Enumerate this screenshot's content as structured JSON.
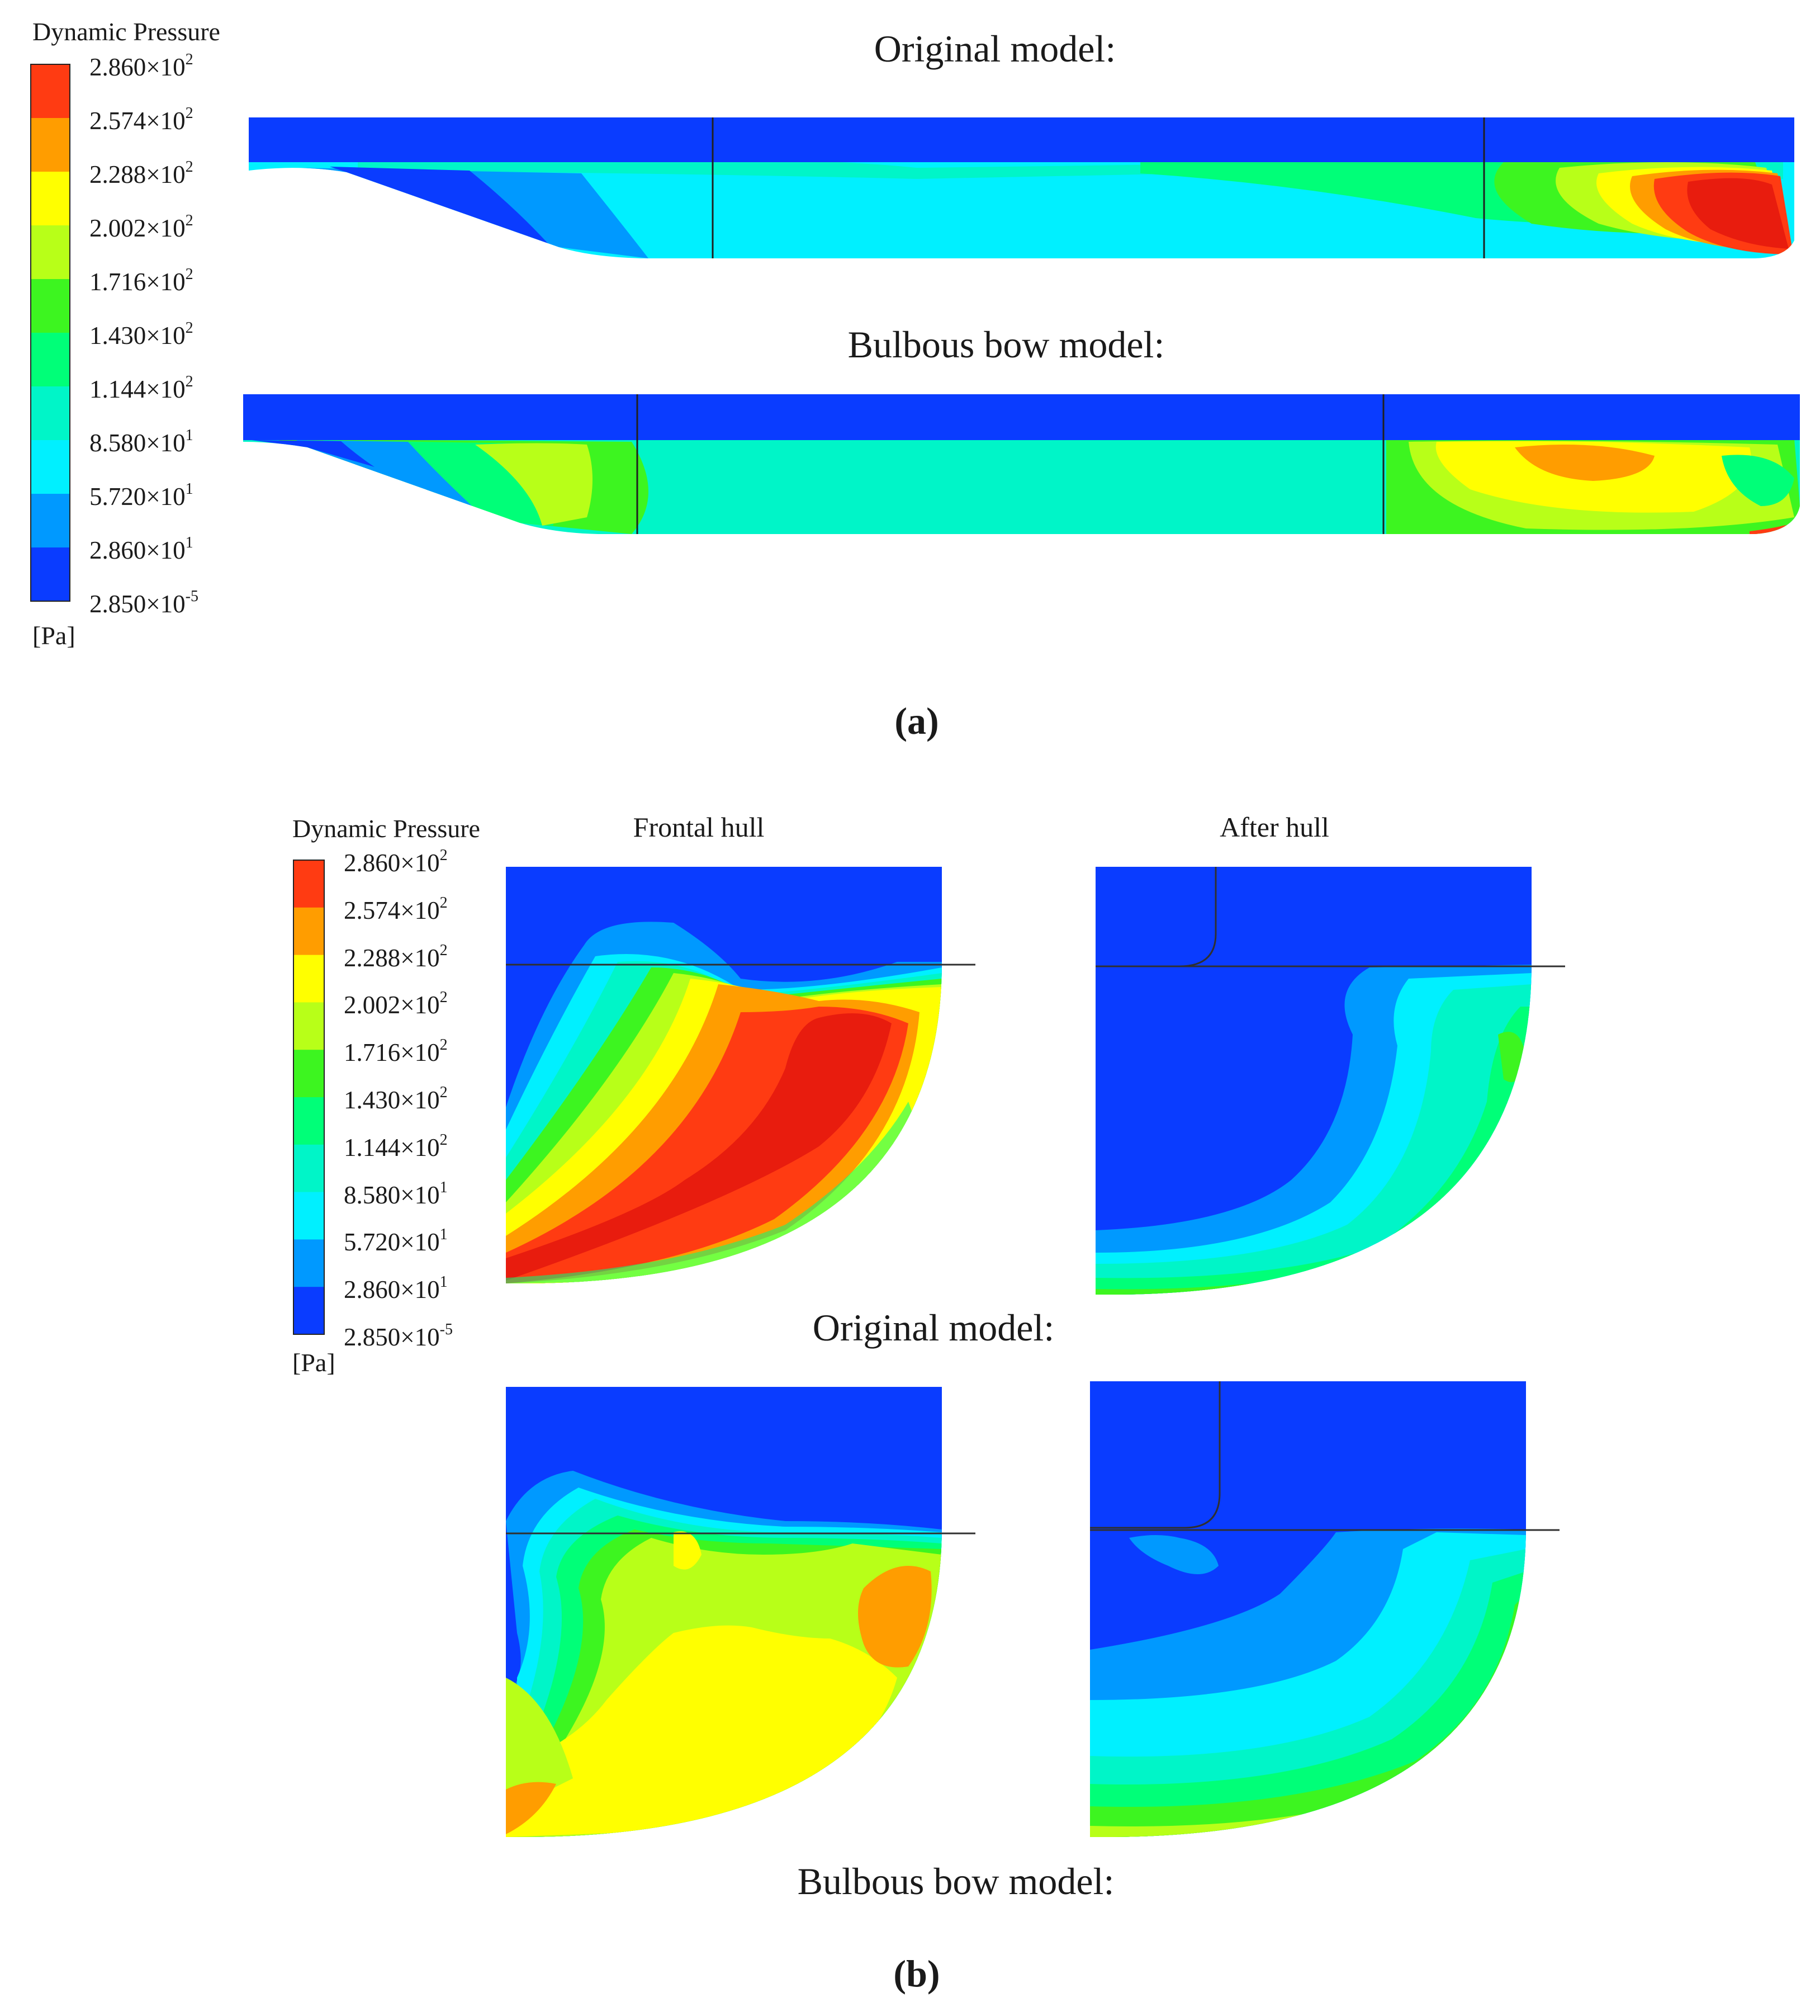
{
  "legend": {
    "title": "Dynamic Pressure",
    "unit": "[Pa]",
    "ticks": [
      {
        "mantissa": "2.860",
        "exp": "2"
      },
      {
        "mantissa": "2.574",
        "exp": "2"
      },
      {
        "mantissa": "2.288",
        "exp": "2"
      },
      {
        "mantissa": "2.002",
        "exp": "2"
      },
      {
        "mantissa": "1.716",
        "exp": "2"
      },
      {
        "mantissa": "1.430",
        "exp": "2"
      },
      {
        "mantissa": "1.144",
        "exp": "2"
      },
      {
        "mantissa": "8.580",
        "exp": "1"
      },
      {
        "mantissa": "5.720",
        "exp": "1"
      },
      {
        "mantissa": "2.860",
        "exp": "1"
      },
      {
        "mantissa": "2.850",
        "exp": "-5"
      }
    ],
    "colors": [
      "#ff3b12",
      "#ff9d00",
      "#ffff00",
      "#b8ff18",
      "#3df520",
      "#00ff78",
      "#00f5c8",
      "#00f0ff",
      "#0099ff",
      "#0a3cff"
    ]
  },
  "palette": {
    "red": "#e81c0e",
    "orange_red": "#ff3b12",
    "orange": "#ff9d00",
    "yellow": "#ffff00",
    "yellow_green": "#b8ff18",
    "green": "#3df520",
    "spring_green": "#00ff78",
    "aquamarine": "#00f5c8",
    "cyan": "#00f0ff",
    "sky_blue": "#0099ff",
    "blue": "#0a3cff"
  },
  "panel_a": {
    "label": "a",
    "original_caption": "Original model:",
    "bulbous_caption": "Bulbous bow model:"
  },
  "panel_b": {
    "label": "b",
    "frontal_title": "Frontal hull",
    "after_title": "After hull",
    "original_caption": "Original model:",
    "bulbous_caption": "Bulbous bow model:"
  }
}
